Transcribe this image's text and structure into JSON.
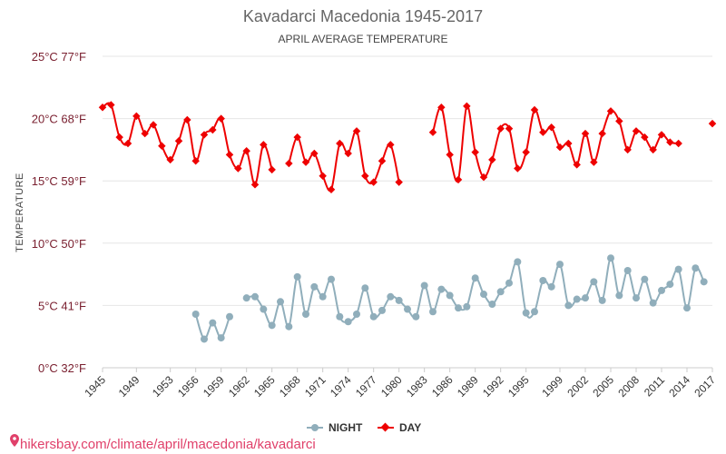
{
  "chart_data": {
    "type": "line",
    "title": "Kavadarci Macedonia 1945-2017",
    "subtitle": "APRIL AVERAGE TEMPERATURE",
    "ylabel": "TEMPERATURE",
    "xlabel": "",
    "ylim": [
      0,
      25
    ],
    "y_ticks": [
      {
        "value": 0,
        "label": "0°C 32°F"
      },
      {
        "value": 5,
        "label": "5°C 41°F"
      },
      {
        "value": 10,
        "label": "10°C 50°F"
      },
      {
        "value": 15,
        "label": "15°C 59°F"
      },
      {
        "value": 20,
        "label": "20°C 68°F"
      },
      {
        "value": 25,
        "label": "25°C 77°F"
      }
    ],
    "x_range": [
      1945,
      2017
    ],
    "x_tick_labels": [
      "1945",
      "1949",
      "1953",
      "1956",
      "1959",
      "1962",
      "1965",
      "1968",
      "1971",
      "1974",
      "1977",
      "1980",
      "1983",
      "1986",
      "1989",
      "1992",
      "1995",
      "1999",
      "2002",
      "2005",
      "2008",
      "2011",
      "2014",
      "2017"
    ],
    "grid": true,
    "legend_position": "bottom",
    "series": [
      {
        "name": "NIGHT",
        "color": "#90aebb",
        "marker": "circle",
        "x": [
          1945,
          1946,
          1947,
          1948,
          1949,
          1950,
          1951,
          1952,
          1953,
          1954,
          1955,
          1956,
          1957,
          1958,
          1959,
          1960,
          1961,
          1962,
          1963,
          1964,
          1965,
          1966,
          1967,
          1968,
          1969,
          1970,
          1971,
          1972,
          1973,
          1974,
          1975,
          1976,
          1977,
          1978,
          1979,
          1980,
          1981,
          1982,
          1983,
          1984,
          1985,
          1986,
          1987,
          1988,
          1989,
          1990,
          1991,
          1992,
          1993,
          1994,
          1995,
          1996,
          1997,
          1998,
          1999,
          2000,
          2001,
          2002,
          2003,
          2004,
          2005,
          2006,
          2007,
          2008,
          2009,
          2010,
          2011,
          2012,
          2013,
          2014,
          2015,
          2016,
          2017
        ],
        "values": [
          null,
          null,
          null,
          null,
          null,
          null,
          null,
          null,
          null,
          null,
          null,
          4.3,
          2.3,
          3.6,
          2.4,
          4.1,
          null,
          5.6,
          5.7,
          4.7,
          3.4,
          5.3,
          3.3,
          7.3,
          4.3,
          6.5,
          5.7,
          7.1,
          4.1,
          3.7,
          4.3,
          6.4,
          4.1,
          4.6,
          5.7,
          5.4,
          4.7,
          4.1,
          6.6,
          4.5,
          6.3,
          5.8,
          4.8,
          4.9,
          7.2,
          5.9,
          5.1,
          6.1,
          6.8,
          8.5,
          4.4,
          4.5,
          7.0,
          6.5,
          8.3,
          5.0,
          5.5,
          5.6,
          6.9,
          5.4,
          8.8,
          5.8,
          7.8,
          5.6,
          7.1,
          5.2,
          6.2,
          6.7,
          7.9,
          4.8,
          8.0,
          6.9,
          null
        ]
      },
      {
        "name": "DAY",
        "color": "#ee0000",
        "marker": "diamond",
        "x": [
          1945,
          1946,
          1947,
          1948,
          1949,
          1950,
          1951,
          1952,
          1953,
          1954,
          1955,
          1956,
          1957,
          1958,
          1959,
          1960,
          1961,
          1962,
          1963,
          1964,
          1965,
          1966,
          1967,
          1968,
          1969,
          1970,
          1971,
          1972,
          1973,
          1974,
          1975,
          1976,
          1977,
          1978,
          1979,
          1980,
          1981,
          1982,
          1983,
          1984,
          1985,
          1986,
          1987,
          1988,
          1989,
          1990,
          1991,
          1992,
          1993,
          1994,
          1995,
          1996,
          1997,
          1998,
          1999,
          2000,
          2001,
          2002,
          2003,
          2004,
          2005,
          2006,
          2007,
          2008,
          2009,
          2010,
          2011,
          2012,
          2013,
          2014,
          2015,
          2016,
          2017
        ],
        "values": [
          20.9,
          21.1,
          18.5,
          18.0,
          20.2,
          18.8,
          19.5,
          17.8,
          16.7,
          18.2,
          19.9,
          16.6,
          18.7,
          19.1,
          20.0,
          17.1,
          16.0,
          17.4,
          14.7,
          17.9,
          15.9,
          null,
          16.4,
          18.5,
          16.5,
          17.2,
          15.4,
          14.3,
          18.0,
          17.2,
          19.0,
          15.4,
          14.9,
          16.6,
          17.9,
          14.9,
          null,
          null,
          null,
          18.9,
          20.9,
          17.1,
          15.1,
          21.0,
          17.3,
          15.3,
          16.7,
          19.2,
          19.2,
          16.0,
          17.3,
          20.7,
          18.9,
          19.3,
          17.7,
          18.0,
          16.3,
          18.8,
          16.5,
          18.8,
          20.6,
          19.8,
          17.5,
          19.0,
          18.5,
          17.5,
          18.7,
          18.1,
          18.0,
          null,
          null,
          null,
          19.6
        ]
      }
    ]
  },
  "legend": {
    "night_label": "NIGHT",
    "day_label": "DAY"
  },
  "footer": {
    "url_text": "hikersbay.com/climate/april/macedonia/kavadarci",
    "pin_icon": "map-pin-icon"
  }
}
